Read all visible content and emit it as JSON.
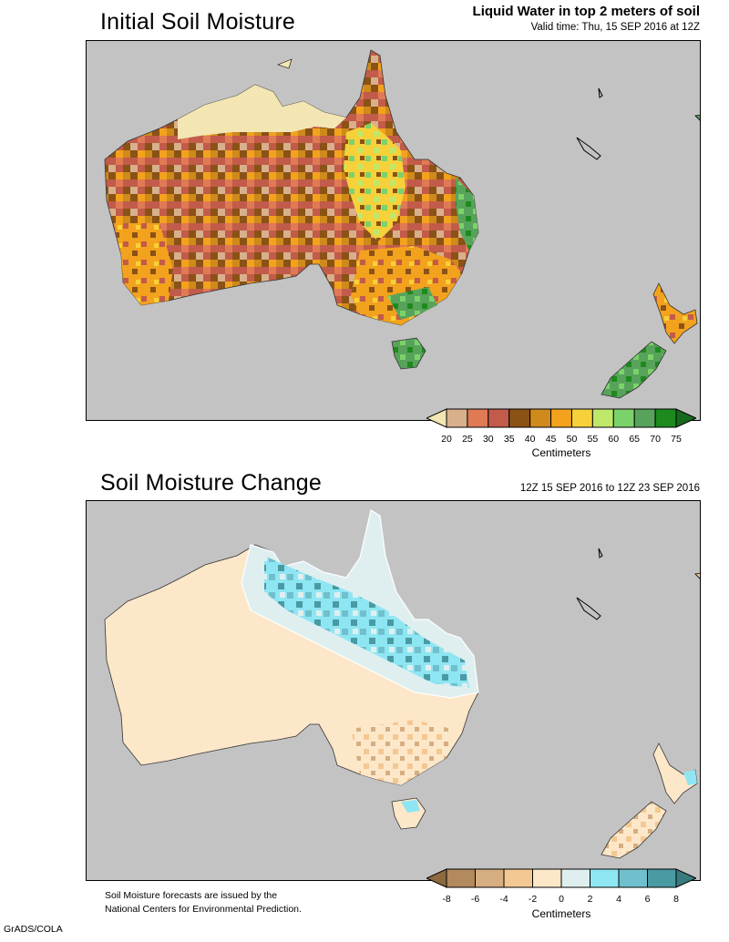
{
  "top_panel": {
    "title": "Initial Soil Moisture",
    "subtitle": "Liquid Water in top 2 meters of soil",
    "valid_time": "Valid time: Thu, 15 SEP 2016 at 12Z",
    "legend": {
      "ticks": [
        "20",
        "25",
        "30",
        "35",
        "40",
        "45",
        "50",
        "55",
        "60",
        "65",
        "70",
        "75"
      ],
      "colors": [
        "#f3e6b3",
        "#d8b08b",
        "#e07a55",
        "#c25b4a",
        "#8b5215",
        "#cf8a1c",
        "#f2a21d",
        "#f6d13a",
        "#bfe86a",
        "#7cd26a",
        "#58a35b",
        "#1d8a1d",
        "#17691b"
      ],
      "unit": "Centimeters"
    }
  },
  "bottom_panel": {
    "title": "Soil Moisture Change",
    "period": "12Z 15 SEP 2016 to 12Z 23 SEP 2016",
    "legend": {
      "ticks": [
        "-8",
        "-6",
        "-4",
        "-2",
        "0",
        "2",
        "4",
        "6",
        "8"
      ],
      "colors": [
        "#8c6a3d",
        "#b3895e",
        "#d6ae82",
        "#f4c892",
        "#fde7c9",
        "#dfeff0",
        "#8fe6f3",
        "#6fc0cc",
        "#4a9aa3",
        "#387b7f"
      ],
      "unit": "Centimeters"
    }
  },
  "footer": {
    "note_line1": "Soil Moisture forecasts are issued by the",
    "note_line2": "National Centers for Environmental Prediction.",
    "credit": "GrADS/COLA"
  }
}
